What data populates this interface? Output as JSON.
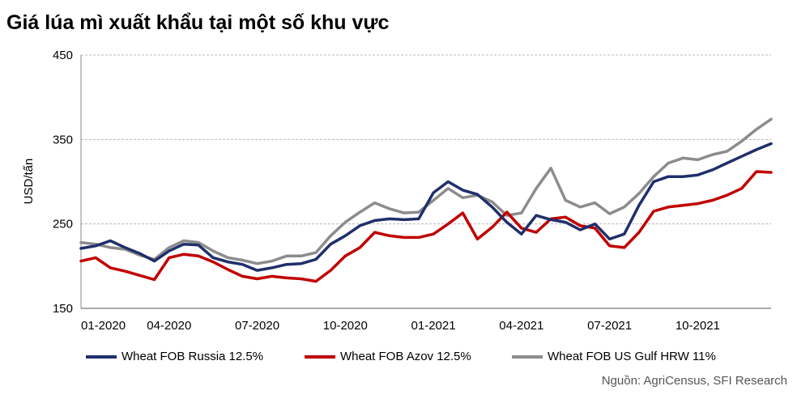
{
  "title": "Giá lúa mì xuất khẩu tại một số khu vực",
  "source": "Nguồn: AgriCensus, SFI Research",
  "chart_data": {
    "type": "line",
    "ylabel": "USD/tấn",
    "xlabel": "",
    "ylim": [
      150,
      450
    ],
    "yticks": [
      150,
      250,
      350,
      450
    ],
    "grid": true,
    "legend_position": "bottom",
    "x": [
      "01-2020",
      "01-2020",
      "02-2020",
      "02-2020",
      "03-2020",
      "03-2020",
      "04-2020",
      "04-2020",
      "05-2020",
      "05-2020",
      "06-2020",
      "06-2020",
      "07-2020",
      "07-2020",
      "08-2020",
      "08-2020",
      "09-2020",
      "09-2020",
      "10-2020",
      "10-2020",
      "11-2020",
      "11-2020",
      "12-2020",
      "12-2020",
      "01-2021",
      "01-2021",
      "02-2021",
      "02-2021",
      "03-2021",
      "03-2021",
      "04-2021",
      "04-2021",
      "05-2021",
      "05-2021",
      "06-2021",
      "06-2021",
      "07-2021",
      "07-2021",
      "08-2021",
      "08-2021",
      "09-2021",
      "09-2021",
      "10-2021",
      "10-2021",
      "11-2021",
      "11-2021",
      "12-2021",
      "12-2021"
    ],
    "xticks": [
      "01-2020",
      "04-2020",
      "07-2020",
      "10-2020",
      "01-2021",
      "04-2021",
      "07-2021",
      "10-2021"
    ],
    "series": [
      {
        "name": "Wheat FOB Russia 12.5%",
        "color": "#1f2f6b",
        "values": [
          221,
          224,
          230,
          222,
          215,
          206,
          218,
          226,
          225,
          210,
          205,
          202,
          195,
          198,
          202,
          203,
          208,
          226,
          236,
          248,
          254,
          256,
          255,
          256,
          287,
          300,
          290,
          285,
          270,
          252,
          238,
          260,
          255,
          252,
          243,
          250,
          232,
          238,
          272,
          300,
          306,
          306,
          308,
          314,
          322,
          330,
          338,
          345
        ]
      },
      {
        "name": "Wheat FOB Azov 12.5%",
        "color": "#c00000",
        "values": [
          206,
          210,
          198,
          194,
          189,
          184,
          210,
          214,
          212,
          205,
          196,
          188,
          185,
          188,
          186,
          185,
          182,
          195,
          212,
          222,
          240,
          236,
          234,
          234,
          238,
          250,
          263,
          232,
          246,
          264,
          245,
          240,
          256,
          258,
          248,
          245,
          224,
          222,
          240,
          265,
          270,
          272,
          274,
          278,
          284,
          292,
          312,
          311
        ]
      },
      {
        "name": "Wheat FOB US Gulf HRW 11%",
        "color": "#8c8c8c",
        "values": [
          228,
          226,
          222,
          220,
          213,
          208,
          222,
          230,
          228,
          218,
          210,
          207,
          203,
          206,
          212,
          212,
          216,
          236,
          252,
          264,
          275,
          268,
          263,
          264,
          278,
          292,
          281,
          284,
          276,
          260,
          263,
          292,
          316,
          278,
          270,
          275,
          262,
          270,
          286,
          306,
          322,
          328,
          326,
          332,
          336,
          348,
          362,
          374
        ]
      }
    ]
  }
}
